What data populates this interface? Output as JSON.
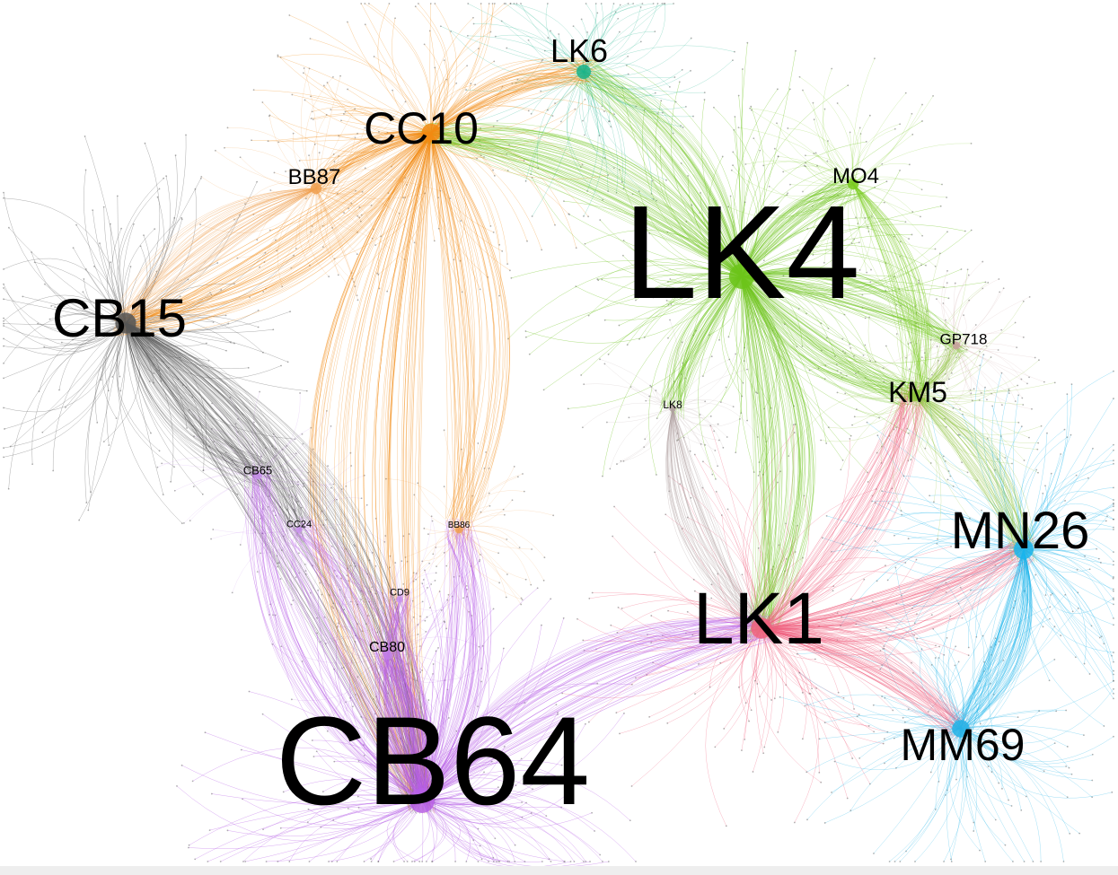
{
  "nodes": [
    {
      "id": "lk4",
      "label": "LK4",
      "color": "#6cc41a"
    },
    {
      "id": "cb64",
      "label": "CB64",
      "color": "#b760e6"
    },
    {
      "id": "lk1",
      "label": "LK1",
      "color": "#f0607e"
    },
    {
      "id": "cb15",
      "label": "CB15",
      "color": "#555555"
    },
    {
      "id": "mn26",
      "label": "MN26",
      "color": "#1ab4ec"
    },
    {
      "id": "mm69",
      "label": "MM69",
      "color": "#22b3e8"
    },
    {
      "id": "cc10",
      "label": "CC10",
      "color": "#f28a12"
    },
    {
      "id": "lk6",
      "label": "LK6",
      "color": "#19b38a"
    },
    {
      "id": "km5",
      "label": "KM5",
      "color": "#8cc23a"
    },
    {
      "id": "bb87",
      "label": "BB87",
      "color": "#f0a050"
    },
    {
      "id": "mo4",
      "label": "MO4",
      "color": "#7acb1e"
    },
    {
      "id": "gp718",
      "label": "GP718",
      "color": "#c9a0a0"
    },
    {
      "id": "cb80",
      "label": "CB80",
      "color": "#c27fe8"
    },
    {
      "id": "cb65",
      "label": "CB65",
      "color": "#c890ec"
    },
    {
      "id": "lk8",
      "label": "LK8",
      "color": "#b0a0a0"
    },
    {
      "id": "cc24",
      "label": "CC24",
      "color": "#c890ec"
    },
    {
      "id": "bb86",
      "label": "BB86",
      "color": "#f0a050"
    },
    {
      "id": "cd9",
      "label": "CD9",
      "color": "#c890ec"
    }
  ],
  "edges": [
    {
      "from": "lk4",
      "to": "lk6"
    },
    {
      "from": "lk4",
      "to": "mo4"
    },
    {
      "from": "lk4",
      "to": "km5"
    },
    {
      "from": "lk4",
      "to": "lk1"
    },
    {
      "from": "lk4",
      "to": "lk8"
    },
    {
      "from": "lk4",
      "to": "gp718"
    },
    {
      "from": "lk4",
      "to": "cc10"
    },
    {
      "from": "cc10",
      "to": "lk6"
    },
    {
      "from": "cc10",
      "to": "bb87"
    },
    {
      "from": "cc10",
      "to": "cb15"
    },
    {
      "from": "cc10",
      "to": "cb64"
    },
    {
      "from": "cc10",
      "to": "bb86"
    },
    {
      "from": "bb87",
      "to": "cb15"
    },
    {
      "from": "cb15",
      "to": "cb64"
    },
    {
      "from": "cb15",
      "to": "cb65"
    },
    {
      "from": "cb15",
      "to": "cc24"
    },
    {
      "from": "cb64",
      "to": "cb80"
    },
    {
      "from": "cb64",
      "to": "cd9"
    },
    {
      "from": "cb64",
      "to": "cc24"
    },
    {
      "from": "cb64",
      "to": "cb65"
    },
    {
      "from": "cb64",
      "to": "bb86"
    },
    {
      "from": "cb64",
      "to": "lk1"
    },
    {
      "from": "lk1",
      "to": "mn26"
    },
    {
      "from": "lk1",
      "to": "mm69"
    },
    {
      "from": "lk1",
      "to": "km5"
    },
    {
      "from": "km5",
      "to": "mn26"
    },
    {
      "from": "km5",
      "to": "gp718"
    },
    {
      "from": "mn26",
      "to": "mm69"
    },
    {
      "from": "lk8",
      "to": "lk1"
    },
    {
      "from": "mo4",
      "to": "km5"
    }
  ]
}
